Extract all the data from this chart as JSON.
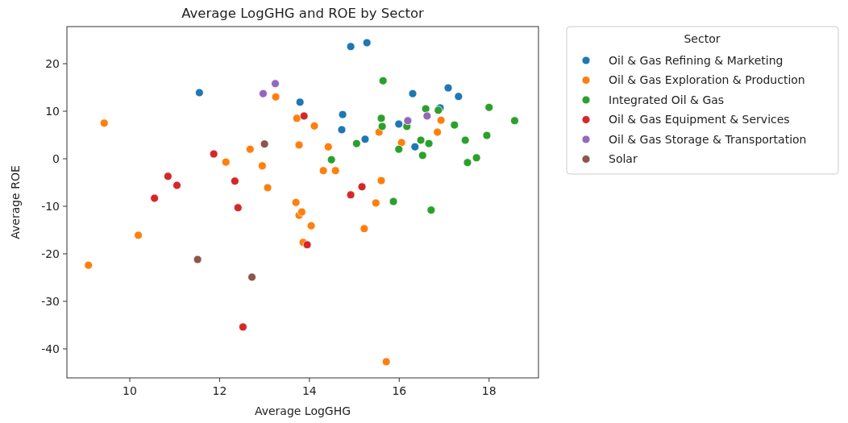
{
  "chart_data": {
    "type": "scatter",
    "title": "Average LogGHG and ROE by Sector",
    "xlabel": "Average LogGHG",
    "ylabel": "Average ROE",
    "legend_title": "Sector",
    "legend": "right",
    "marker": "circle",
    "grid": false,
    "xlim": [
      8.6,
      19.1
    ],
    "xticks": [
      10,
      12,
      14,
      16,
      18
    ],
    "ylim": [
      -46.1,
      27.8
    ],
    "yticks": [
      -40,
      -30,
      -20,
      -10,
      0,
      10,
      20
    ],
    "series": [
      {
        "name": "Oil & Gas Refining & Marketing",
        "color": "#1f77b4",
        "x": [
          11.55,
          14.92,
          15.28,
          13.79,
          14.74,
          14.72,
          15.24,
          15.99,
          16.3,
          17.09,
          17.32,
          16.35,
          16.91
        ],
        "values": [
          13.9,
          23.6,
          24.4,
          11.9,
          9.3,
          6.1,
          4.1,
          7.3,
          13.7,
          14.9,
          13.1,
          2.5,
          10.7
        ]
      },
      {
        "name": "Oil & Gas Exploration & Production",
        "color": "#ff7f0e",
        "x": [
          9.43,
          13.25,
          13.72,
          13.77,
          12.68,
          12.14,
          12.95,
          13.07,
          13.7,
          14.11,
          14.42,
          14.31,
          14.58,
          15.55,
          16.05,
          16.93,
          16.85,
          15.6,
          15.48,
          13.77,
          13.83,
          14.04,
          15.22,
          13.86,
          15.71,
          10.19,
          9.08
        ],
        "values": [
          7.5,
          13.0,
          8.5,
          2.9,
          2.0,
          -0.7,
          -1.5,
          -6.1,
          -9.2,
          6.9,
          2.5,
          -2.5,
          -2.5,
          5.6,
          3.4,
          8.1,
          5.6,
          -4.6,
          -9.3,
          -11.9,
          -11.2,
          -14.1,
          -14.7,
          -17.6,
          -42.7,
          -16.1,
          -22.4
        ]
      },
      {
        "name": "Integrated Oil & Gas",
        "color": "#2ca02c",
        "x": [
          15.64,
          16.59,
          16.87,
          18.0,
          18.57,
          15.6,
          15.62,
          16.17,
          17.23,
          17.95,
          17.47,
          16.48,
          16.66,
          15.05,
          15.99,
          16.52,
          14.49,
          17.72,
          17.52,
          15.87,
          16.71
        ],
        "values": [
          16.4,
          10.5,
          10.2,
          10.8,
          8.0,
          8.5,
          6.8,
          6.8,
          7.1,
          4.9,
          3.9,
          3.9,
          3.2,
          3.2,
          2.0,
          0.7,
          -0.2,
          0.2,
          -0.8,
          -9.0,
          -10.8
        ]
      },
      {
        "name": "Oil & Gas Equipment & Services",
        "color": "#d62728",
        "x": [
          13.88,
          11.87,
          10.85,
          11.05,
          12.34,
          10.55,
          12.41,
          13.95,
          12.52,
          15.17,
          14.92
        ],
        "values": [
          9.0,
          1.0,
          -3.7,
          -5.6,
          -4.7,
          -8.3,
          -10.3,
          -18.1,
          -35.4,
          -5.9,
          -7.6
        ]
      },
      {
        "name": "Oil & Gas Storage & Transportation",
        "color": "#9467bd",
        "x": [
          12.97,
          13.24,
          16.19,
          16.62
        ],
        "values": [
          13.7,
          15.8,
          8.0,
          9.0
        ]
      },
      {
        "name": "Solar",
        "color": "#8c564b",
        "x": [
          13.0,
          11.51,
          12.72
        ],
        "values": [
          3.1,
          -21.2,
          -24.9
        ]
      }
    ]
  }
}
